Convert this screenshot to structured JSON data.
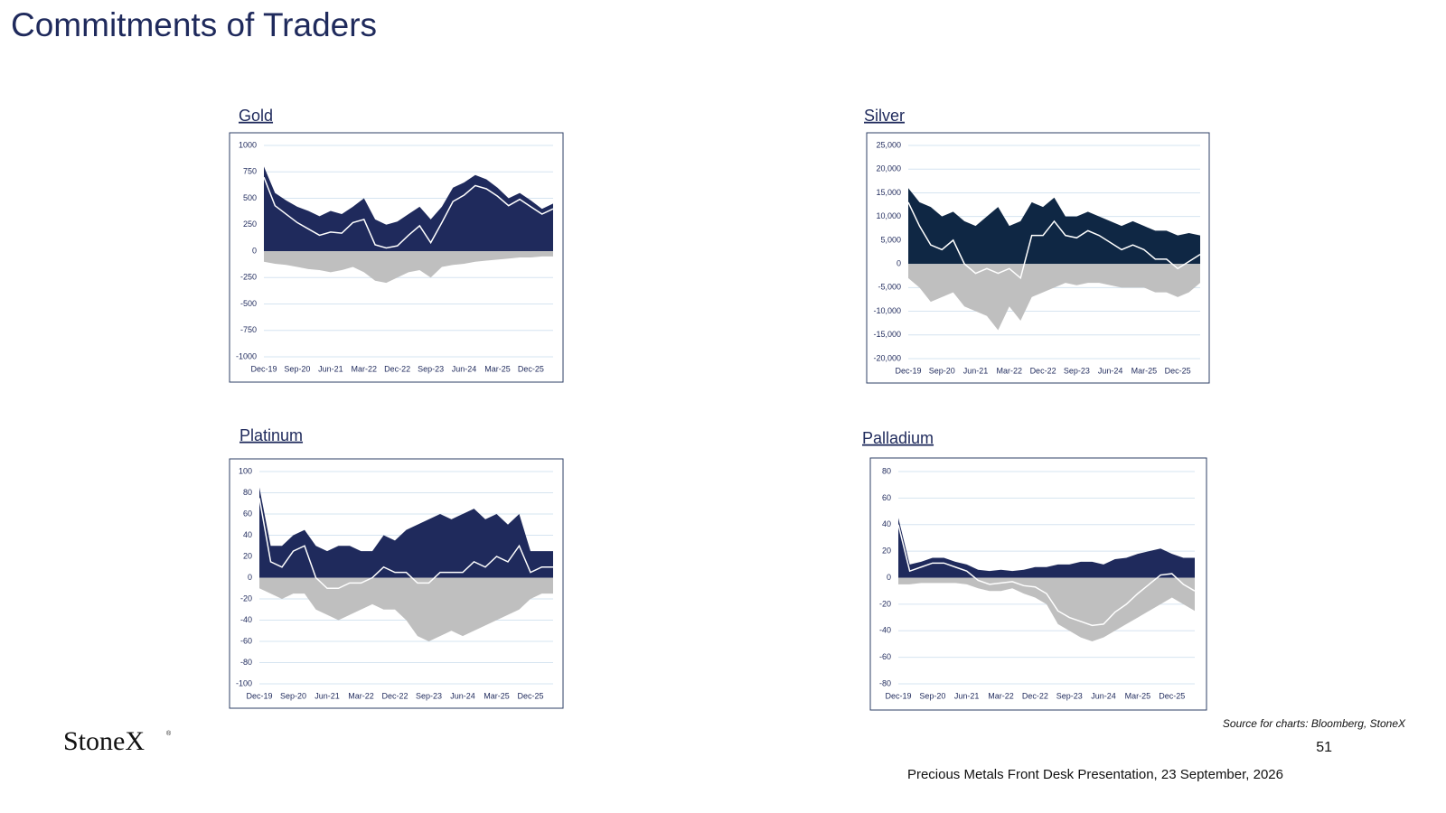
{
  "title": "Commitments of Traders",
  "source": "Source for charts: Bloomberg, StoneX",
  "page_number": "51",
  "footer": "Precious Metals Front Desk Presentation, 23 September, 2026",
  "logo": {
    "name": "StoneX",
    "mark": "®"
  },
  "chart_data": [
    {
      "type": "area",
      "title": "Gold",
      "categories": [
        "Dec-19",
        null,
        null,
        "Sep-20",
        null,
        null,
        "Jun-21",
        null,
        null,
        "Mar-22",
        null,
        null,
        "Dec-22",
        null,
        null,
        "Sep-23",
        null,
        null,
        "Jun-24",
        null,
        null,
        "Mar-25",
        null,
        null,
        "Dec-25",
        null,
        null
      ],
      "series": [
        {
          "color": "#1f2a5c",
          "values": [
            800,
            550,
            480,
            420,
            380,
            330,
            380,
            350,
            420,
            500,
            300,
            250,
            280,
            350,
            420,
            300,
            420,
            600,
            650,
            720,
            680,
            600,
            500,
            550,
            480,
            400,
            450
          ]
        },
        {
          "color": "#bfbfbf",
          "values": [
            -100,
            -120,
            -130,
            -150,
            -170,
            -180,
            -200,
            -180,
            -150,
            -200,
            -280,
            -300,
            -250,
            -200,
            -180,
            -250,
            -150,
            -130,
            -120,
            -100,
            -90,
            -80,
            -70,
            -60,
            -60,
            -50,
            -50
          ]
        },
        {
          "color": "#ffffff",
          "values": [
            700,
            430,
            350,
            270,
            210,
            150,
            180,
            170,
            270,
            300,
            60,
            30,
            50,
            150,
            240,
            80,
            270,
            470,
            530,
            620,
            590,
            520,
            430,
            490,
            420,
            350,
            400
          ]
        }
      ],
      "ylim": [
        -1000,
        1000
      ],
      "yticks": [
        1000,
        750,
        500,
        250,
        0,
        -250,
        -500,
        -750,
        -1000
      ],
      "grid": true
    },
    {
      "type": "area",
      "title": "Silver",
      "categories": [
        "Dec-19",
        null,
        null,
        "Sep-20",
        null,
        null,
        "Jun-21",
        null,
        null,
        "Mar-22",
        null,
        null,
        "Dec-22",
        null,
        null,
        "Sep-23",
        null,
        null,
        "Jun-24",
        null,
        null,
        "Mar-25",
        null,
        null,
        "Dec-25",
        null,
        null
      ],
      "series": [
        {
          "color": "#0f2744",
          "values": [
            16000,
            13000,
            12000,
            10000,
            11000,
            9000,
            8000,
            10000,
            12000,
            8000,
            9000,
            13000,
            12000,
            14000,
            10000,
            10000,
            11000,
            10000,
            9000,
            8000,
            9000,
            8000,
            7000,
            7000,
            6000,
            6500,
            6000
          ]
        },
        {
          "color": "#bfbfbf",
          "values": [
            -3000,
            -5000,
            -8000,
            -7000,
            -6000,
            -9000,
            -10000,
            -11000,
            -14000,
            -9000,
            -12000,
            -7000,
            -6000,
            -5000,
            -4000,
            -4500,
            -4000,
            -4000,
            -4500,
            -5000,
            -5000,
            -5000,
            -6000,
            -6000,
            -7000,
            -6000,
            -4000
          ]
        },
        {
          "color": "#ffffff",
          "values": [
            13000,
            8000,
            4000,
            3000,
            5000,
            0,
            -2000,
            -1000,
            -2000,
            -1000,
            -3000,
            6000,
            6000,
            9000,
            6000,
            5500,
            7000,
            6000,
            4500,
            3000,
            4000,
            3000,
            1000,
            1000,
            -1000,
            500,
            2000
          ]
        }
      ],
      "ylim": [
        -20000,
        25000
      ],
      "yticks": [
        {
          "value": 25000,
          "label": "25,000"
        },
        {
          "value": 20000,
          "label": "20,000"
        },
        {
          "value": 15000,
          "label": "15,000"
        },
        {
          "value": 10000,
          "label": "10,000"
        },
        {
          "value": 5000,
          "label": "5,000"
        },
        0,
        {
          "value": -5000,
          "label": "-5,000"
        },
        {
          "value": -10000,
          "label": "-10,000"
        },
        {
          "value": -15000,
          "label": "-15,000"
        },
        {
          "value": -20000,
          "label": "-20,000"
        }
      ],
      "grid": true
    },
    {
      "type": "area",
      "title": "Platinum",
      "categories": [
        "Dec-19",
        null,
        null,
        "Sep-20",
        null,
        null,
        "Jun-21",
        null,
        null,
        "Mar-22",
        null,
        null,
        "Dec-22",
        null,
        null,
        "Sep-23",
        null,
        null,
        "Jun-24",
        null,
        null,
        "Mar-25",
        null,
        null,
        "Dec-25",
        null,
        null
      ],
      "series": [
        {
          "color": "#1f2a5c",
          "values": [
            85,
            30,
            30,
            40,
            45,
            30,
            25,
            30,
            30,
            25,
            25,
            40,
            35,
            45,
            50,
            55,
            60,
            55,
            60,
            65,
            55,
            60,
            50,
            60,
            25,
            25,
            25
          ]
        },
        {
          "color": "#bfbfbf",
          "values": [
            -10,
            -15,
            -20,
            -15,
            -15,
            -30,
            -35,
            -40,
            -35,
            -30,
            -25,
            -30,
            -30,
            -40,
            -55,
            -60,
            -55,
            -50,
            -55,
            -50,
            -45,
            -40,
            -35,
            -30,
            -20,
            -15,
            -15
          ]
        },
        {
          "color": "#ffffff",
          "values": [
            75,
            15,
            10,
            25,
            30,
            0,
            -10,
            -10,
            -5,
            -5,
            0,
            10,
            5,
            5,
            -5,
            -5,
            5,
            5,
            5,
            15,
            10,
            20,
            15,
            30,
            5,
            10,
            10
          ]
        }
      ],
      "ylim": [
        -100,
        100
      ],
      "yticks": [
        100,
        80,
        60,
        40,
        20,
        0,
        -20,
        -40,
        -60,
        -80,
        -100
      ],
      "grid": true
    },
    {
      "type": "area",
      "title": "Palladium",
      "categories": [
        "Dec-19",
        null,
        null,
        "Sep-20",
        null,
        null,
        "Jun-21",
        null,
        null,
        "Mar-22",
        null,
        null,
        "Dec-22",
        null,
        null,
        "Sep-23",
        null,
        null,
        "Jun-24",
        null,
        null,
        "Mar-25",
        null,
        null,
        "Dec-25",
        null,
        null
      ],
      "series": [
        {
          "color": "#1f2a5c",
          "values": [
            45,
            10,
            12,
            15,
            15,
            12,
            10,
            6,
            5,
            6,
            5,
            6,
            8,
            8,
            10,
            10,
            12,
            12,
            10,
            14,
            15,
            18,
            20,
            22,
            18,
            15,
            15
          ]
        },
        {
          "color": "#bfbfbf",
          "values": [
            -5,
            -5,
            -4,
            -4,
            -4,
            -4,
            -5,
            -8,
            -10,
            -10,
            -8,
            -12,
            -15,
            -20,
            -35,
            -40,
            -45,
            -48,
            -45,
            -40,
            -35,
            -30,
            -25,
            -20,
            -15,
            -20,
            -25
          ]
        },
        {
          "color": "#ffffff",
          "values": [
            40,
            5,
            8,
            11,
            11,
            8,
            5,
            -2,
            -5,
            -4,
            -3,
            -6,
            -7,
            -12,
            -25,
            -30,
            -33,
            -36,
            -35,
            -26,
            -20,
            -12,
            -5,
            2,
            3,
            -5,
            -10
          ]
        }
      ],
      "ylim": [
        -80,
        80
      ],
      "yticks": [
        80,
        60,
        40,
        20,
        0,
        -20,
        -40,
        -60,
        -80
      ],
      "grid": true
    }
  ]
}
